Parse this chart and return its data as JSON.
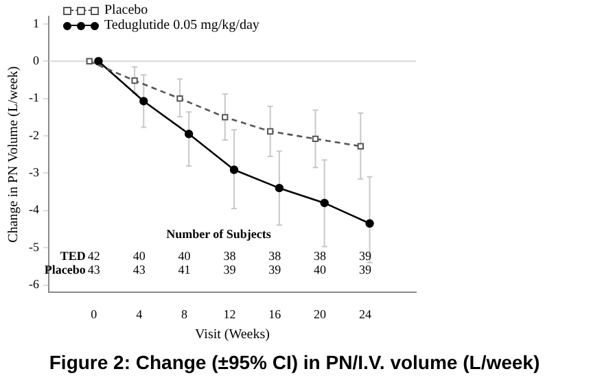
{
  "chart_data": {
    "type": "line",
    "title": "Figure 2: Change (±95% CI) in PN/I.V. volume (L/week)",
    "xlabel": "Visit (Weeks)",
    "ylabel": "Change in PN Volume (L/week)",
    "xlim": [
      -4,
      28.5
    ],
    "xticks": [
      0,
      4,
      8,
      12,
      16,
      20,
      24
    ],
    "ylim": [
      -6.2,
      1.2
    ],
    "yticks": [
      1,
      0,
      -1,
      -2,
      -3,
      -4,
      -5,
      -6
    ],
    "legend": "top left",
    "grid": false,
    "ref_lines": [
      {
        "axis": "y",
        "value": 0,
        "color": "#d9d9d9"
      }
    ],
    "series": [
      {
        "name": "Placebo",
        "color": "#555555",
        "marker": "square",
        "line_style": "dashed",
        "x": [
          -0.4,
          3.6,
          7.6,
          11.6,
          15.6,
          19.6,
          23.6
        ],
        "values": [
          0,
          -0.52,
          -1.0,
          -1.5,
          -1.88,
          -2.08,
          -2.28
        ],
        "errors": [
          null,
          [
            -0.86,
            -0.15
          ],
          [
            -1.49,
            -0.48
          ],
          [
            -2.11,
            -0.88
          ],
          [
            -2.55,
            -1.21
          ],
          [
            -2.85,
            -1.31
          ],
          [
            -3.16,
            -1.39
          ]
        ]
      },
      {
        "name": "Teduglutide 0.05 mg/kg/day",
        "color": "#000000",
        "marker": "circle",
        "line_style": "solid",
        "x": [
          0.4,
          4.4,
          8.4,
          12.4,
          16.4,
          20.4,
          24.4
        ],
        "values": [
          0,
          -1.07,
          -1.95,
          -2.91,
          -3.4,
          -3.8,
          -4.35
        ],
        "errors": [
          null,
          [
            -1.77,
            -0.37
          ],
          [
            -2.81,
            -1.36
          ],
          [
            -3.95,
            -1.84
          ],
          [
            -4.39,
            -2.41
          ],
          [
            -4.97,
            -2.65
          ],
          [
            -5.4,
            -3.1
          ]
        ]
      }
    ],
    "annotations": [
      "Number of Subjects",
      "TED",
      "42",
      "40",
      "40",
      "38",
      "38",
      "38",
      "39",
      "Placebo",
      "43",
      "43",
      "41",
      "39",
      "39",
      "40",
      "39"
    ]
  }
}
